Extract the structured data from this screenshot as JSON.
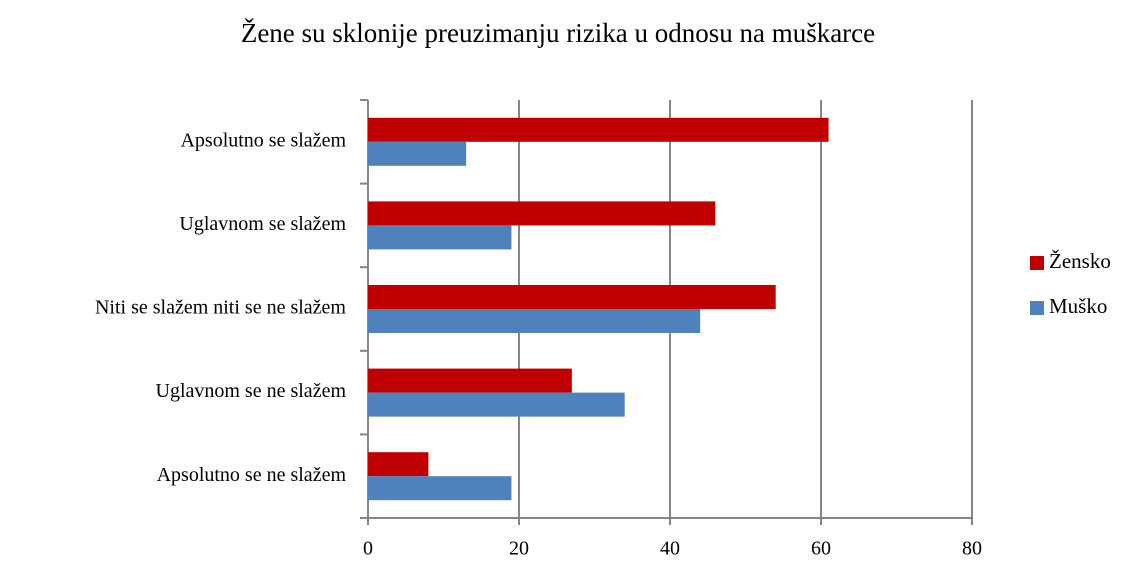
{
  "chart_data": {
    "type": "bar",
    "orientation": "horizontal",
    "title": "Žene su sklonije preuzimanju rizika  u odnosu na muškarce",
    "categories": [
      "Apsolutno se slažem",
      "Uglavnom se slažem",
      "Niti se slažem niti se ne slažem",
      "Uglavnom se ne slažem",
      "Apsolutno se ne slažem"
    ],
    "series": [
      {
        "name": "Žensko",
        "color": "#c00000",
        "values": [
          61,
          46,
          54,
          27,
          8
        ]
      },
      {
        "name": "Muško",
        "color": "#4f81bd",
        "values": [
          13,
          19,
          44,
          34,
          19
        ]
      }
    ],
    "xlim": [
      0,
      80
    ],
    "xticks": [
      0,
      20,
      40,
      60,
      80
    ],
    "grid": true,
    "legend": "right"
  }
}
